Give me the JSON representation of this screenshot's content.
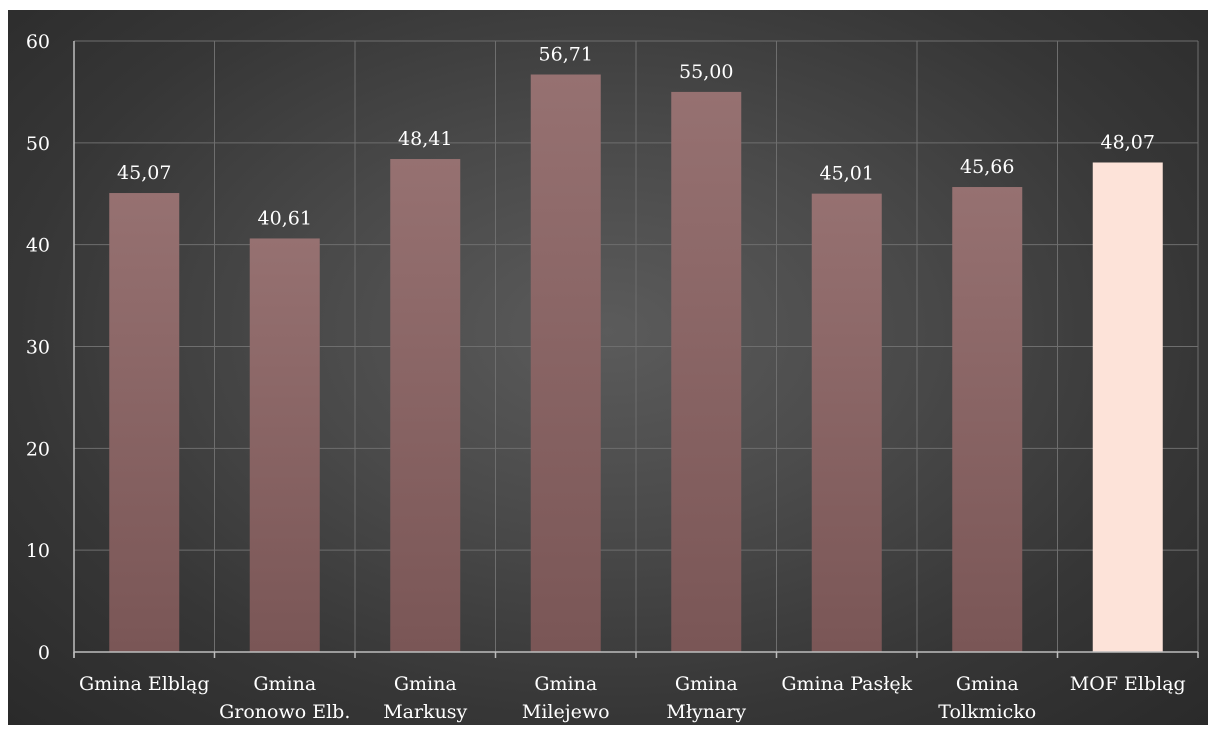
{
  "chart_data": {
    "type": "bar",
    "title": "",
    "xlabel": "",
    "ylabel": "",
    "ylim": [
      0,
      60
    ],
    "yticks": [
      0,
      10,
      20,
      30,
      40,
      50,
      60
    ],
    "grid": true,
    "categories": [
      [
        "Gmina Elbląg"
      ],
      [
        "Gmina",
        "Gronowo Elb."
      ],
      [
        "Gmina",
        "Markusy"
      ],
      [
        "Gmina",
        "Milejewo"
      ],
      [
        "Gmina",
        "Młynary"
      ],
      [
        "Gmina Pasłęk"
      ],
      [
        "Gmina",
        "Tolkmicko"
      ],
      [
        "MOF Elbląg"
      ]
    ],
    "values": [
      45.07,
      40.61,
      48.41,
      56.71,
      55.0,
      45.01,
      45.66,
      48.07
    ],
    "value_labels": [
      "45,07",
      "40,61",
      "48,41",
      "56,71",
      "55,00",
      "45,01",
      "45,66",
      "48,07"
    ],
    "colors": {
      "bar": "#8a6363",
      "bar_highlight": "#fde3d9",
      "grid": "#6e6e6e",
      "axis": "#bdbdbd",
      "text": "#ffffff"
    },
    "highlight_index": 7
  }
}
